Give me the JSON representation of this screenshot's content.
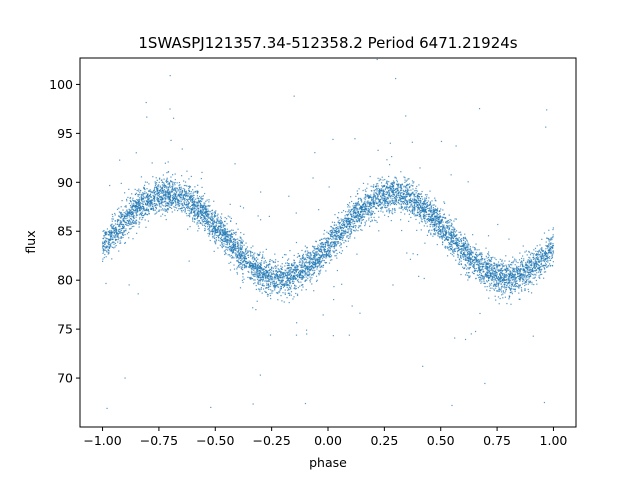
{
  "chart_data": {
    "type": "scatter",
    "title": "1SWASPJ121357.34-512358.2 Period 6471.21924s",
    "xlabel": "phase",
    "ylabel": "flux",
    "xlim": [
      -1.1,
      1.1
    ],
    "ylim": [
      65.0,
      102.7
    ],
    "xticks": [
      "−1.00",
      "−0.75",
      "−0.50",
      "−0.25",
      "0.00",
      "0.25",
      "0.50",
      "0.75",
      "1.00"
    ],
    "xtick_values": [
      -1.0,
      -0.75,
      -0.5,
      -0.25,
      0.0,
      0.25,
      0.5,
      0.75,
      1.0
    ],
    "yticks": [
      "70",
      "75",
      "80",
      "85",
      "90",
      "95",
      "100"
    ],
    "ytick_values": [
      70,
      75,
      80,
      85,
      90,
      95,
      100
    ],
    "grid": false,
    "series_color": "#1f77b4",
    "curve_model": {
      "description": "sinusoidal phase-folded light curve",
      "mean": 84.5,
      "amplitude": 4.25,
      "max_phase": 0.29,
      "min_phase": -0.21,
      "scatter_sigma": 0.85
    },
    "visible_points_sample": [
      [
        -1.0,
        83.3
      ],
      [
        -0.9,
        85.9
      ],
      [
        -0.8,
        88.2
      ],
      [
        -0.71,
        88.8
      ],
      [
        -0.6,
        87.2
      ],
      [
        -0.5,
        85.0
      ],
      [
        -0.4,
        82.3
      ],
      [
        -0.3,
        80.6
      ],
      [
        -0.21,
        80.3
      ],
      [
        -0.1,
        81.5
      ],
      [
        0.0,
        83.5
      ],
      [
        0.1,
        85.9
      ],
      [
        0.2,
        88.0
      ],
      [
        0.29,
        88.8
      ],
      [
        0.4,
        87.5
      ],
      [
        0.5,
        85.0
      ],
      [
        0.6,
        82.3
      ],
      [
        0.7,
        80.6
      ],
      [
        0.79,
        80.3
      ],
      [
        0.9,
        81.3
      ],
      [
        1.0,
        82.8
      ],
      [
        -0.7,
        100.9
      ],
      [
        -0.15,
        98.8
      ],
      [
        0.3,
        100.6
      ],
      [
        0.97,
        97.4
      ],
      [
        -0.98,
        66.9
      ],
      [
        -0.52,
        67.0
      ],
      [
        -0.1,
        67.4
      ],
      [
        0.55,
        67.2
      ],
      [
        0.96,
        67.5
      ],
      [
        -0.9,
        70.0
      ],
      [
        -0.3,
        70.3
      ],
      [
        0.42,
        71.2
      ]
    ]
  }
}
